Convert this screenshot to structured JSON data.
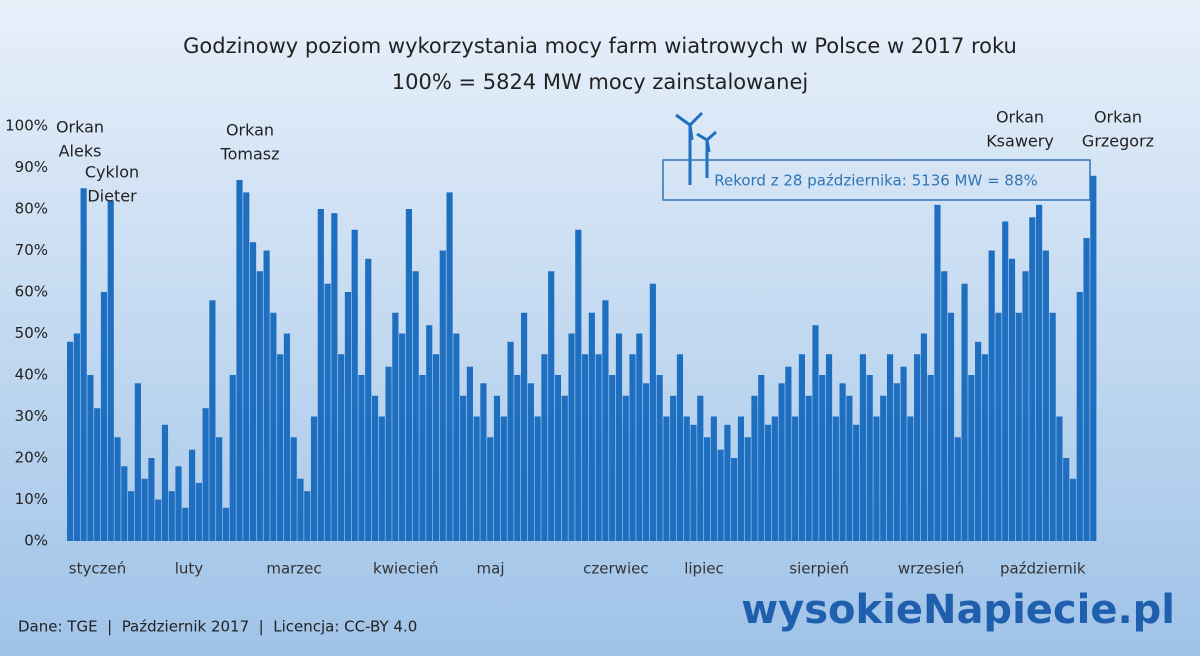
{
  "chart_data": {
    "type": "bar",
    "title": "Godzinowy poziom wykorzystania mocy farm wiatrowych w Polsce w 2017 roku",
    "subtitle": "100% = 5824 MW mocy zainstalowanej",
    "color": "#1f6fc0",
    "xlim": [
      0,
      304
    ],
    "ylim": [
      0,
      100
    ],
    "yticks": [
      {
        "value": 0,
        "label": "0%"
      },
      {
        "value": 10,
        "label": "10%"
      },
      {
        "value": 20,
        "label": "20%"
      },
      {
        "value": 30,
        "label": "30%"
      },
      {
        "value": 40,
        "label": "40%"
      },
      {
        "value": 50,
        "label": "50%"
      },
      {
        "value": 60,
        "label": "60%"
      },
      {
        "value": 70,
        "label": "70%"
      },
      {
        "value": 80,
        "label": "80%"
      },
      {
        "value": 90,
        "label": "90%"
      },
      {
        "value": 100,
        "label": "100%"
      }
    ],
    "xticks": [
      {
        "value": 9,
        "label": "styczeń"
      },
      {
        "value": 36,
        "label": "luty"
      },
      {
        "value": 67,
        "label": "marzec"
      },
      {
        "value": 100,
        "label": "kwiecień"
      },
      {
        "value": 125,
        "label": "maj"
      },
      {
        "value": 162,
        "label": "czerwiec"
      },
      {
        "value": 188,
        "label": "lipiec"
      },
      {
        "value": 222,
        "label": "sierpień"
      },
      {
        "value": 255,
        "label": "wrzesień"
      },
      {
        "value": 288,
        "label": "październik"
      }
    ],
    "x": [
      0,
      2,
      4,
      6,
      8,
      10,
      12,
      14,
      16,
      18,
      20,
      22,
      24,
      26,
      28,
      30,
      32,
      34,
      36,
      38,
      40,
      42,
      44,
      46,
      48,
      50,
      52,
      54,
      56,
      58,
      60,
      62,
      64,
      66,
      68,
      70,
      72,
      74,
      76,
      78,
      80,
      82,
      84,
      86,
      88,
      90,
      92,
      94,
      96,
      98,
      100,
      102,
      104,
      106,
      108,
      110,
      112,
      114,
      116,
      118,
      120,
      122,
      124,
      126,
      128,
      130,
      132,
      134,
      136,
      138,
      140,
      142,
      144,
      146,
      148,
      150,
      152,
      154,
      156,
      158,
      160,
      162,
      164,
      166,
      168,
      170,
      172,
      174,
      176,
      178,
      180,
      182,
      184,
      186,
      188,
      190,
      192,
      194,
      196,
      198,
      200,
      202,
      204,
      206,
      208,
      210,
      212,
      214,
      216,
      218,
      220,
      222,
      224,
      226,
      228,
      230,
      232,
      234,
      236,
      238,
      240,
      242,
      244,
      246,
      248,
      250,
      252,
      254,
      256,
      258,
      260,
      262,
      264,
      266,
      268,
      270,
      272,
      274,
      276,
      278,
      280,
      282,
      284,
      286,
      288,
      290,
      292,
      294,
      296,
      298,
      300,
      302
    ],
    "values": [
      48,
      50,
      85,
      40,
      32,
      60,
      82,
      25,
      18,
      12,
      38,
      15,
      20,
      10,
      28,
      12,
      18,
      8,
      22,
      14,
      32,
      58,
      25,
      8,
      40,
      87,
      84,
      72,
      65,
      70,
      55,
      45,
      50,
      25,
      15,
      12,
      30,
      80,
      62,
      79,
      45,
      60,
      75,
      40,
      68,
      35,
      30,
      42,
      55,
      50,
      80,
      65,
      40,
      52,
      45,
      70,
      84,
      50,
      35,
      42,
      30,
      38,
      25,
      35,
      30,
      48,
      40,
      55,
      38,
      30,
      45,
      65,
      40,
      35,
      50,
      75,
      45,
      55,
      45,
      58,
      40,
      50,
      35,
      45,
      50,
      38,
      62,
      40,
      30,
      35,
      45,
      30,
      28,
      35,
      25,
      30,
      22,
      28,
      20,
      30,
      25,
      35,
      40,
      28,
      30,
      38,
      42,
      30,
      45,
      35,
      52,
      40,
      45,
      30,
      38,
      35,
      28,
      45,
      40,
      30,
      35,
      45,
      38,
      42,
      30,
      45,
      50,
      40,
      81,
      65,
      55,
      25,
      62,
      40,
      48,
      45,
      70,
      55,
      77,
      68,
      55,
      65,
      78,
      81,
      70,
      55,
      30,
      20,
      15,
      60,
      73,
      88
    ],
    "annotations": [
      [
        "Orkan",
        "Aleks"
      ],
      [
        "Cyklon",
        "Dieter"
      ],
      [
        "Orkan",
        "Tomasz"
      ],
      [
        "Orkan",
        "Ksawery"
      ],
      [
        "Orkan",
        "Grzegorz"
      ]
    ],
    "record": "Rekord z 28 października: 5136 MW = 88%",
    "footer": "Dane: TGE  |  Październik 2017  |  Licencja: CC-BY 4.0",
    "logo": "wysokieNapiecie.pl"
  }
}
